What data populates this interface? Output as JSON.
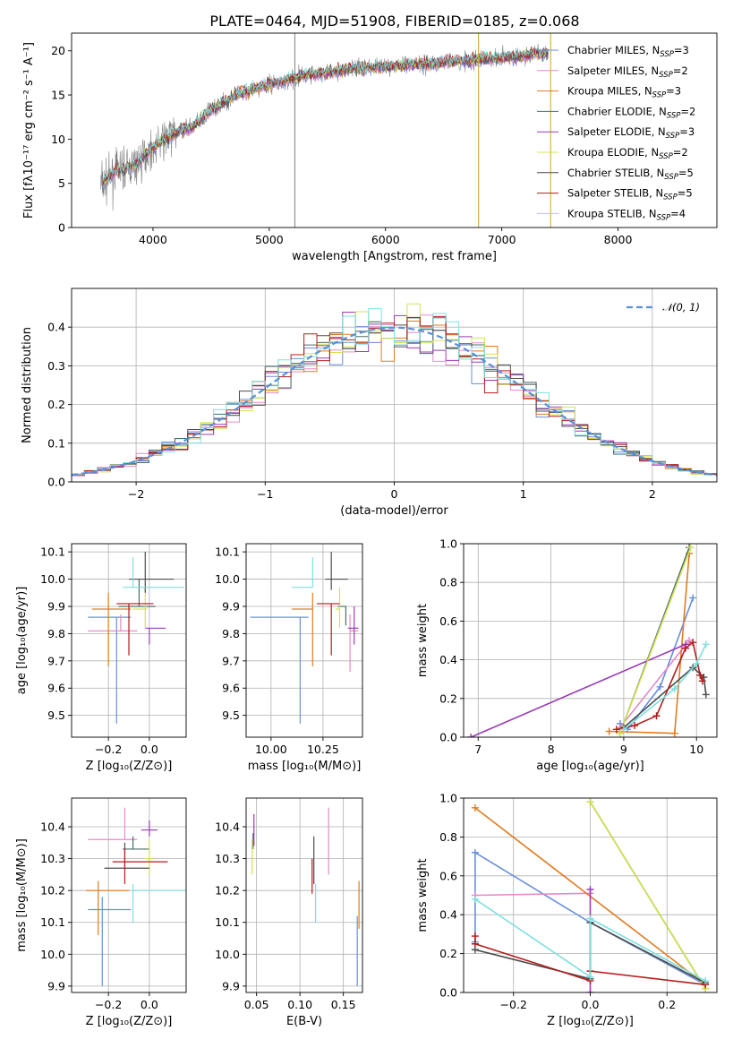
{
  "colors": [
    "#6a8fdd",
    "#e58aca",
    "#e07b20",
    "#4a6d6a",
    "#9a3bb5",
    "#d4e350",
    "#4d4d4d",
    "#b51c1c",
    "#7ee0e0"
  ],
  "chart_data": [
    {
      "id": "spectrum",
      "type": "line",
      "title": "PLATE=0464, MJD=51908, FIBERID=0185, z=0.068",
      "xlabel": "wavelength [Angstrom, rest frame]",
      "ylabel": "Flux [fλ10⁻¹⁷ erg cm⁻² s⁻¹ A⁻¹]",
      "xlim": [
        3300,
        8850
      ],
      "ylim": [
        0,
        22
      ],
      "xticks": [
        4000,
        5000,
        6000,
        7000,
        8000
      ],
      "yticks": [
        0,
        5,
        10,
        15,
        20
      ],
      "grid": false,
      "legend_position": "upper-right",
      "data_color": "#808080",
      "continuum": {
        "x": [
          3550,
          3700,
          3850,
          3950,
          4050,
          4200,
          4350,
          4500,
          4700,
          4900,
          5100,
          5300,
          5500,
          5700,
          6000,
          6300,
          6600,
          7000,
          7400
        ],
        "y": [
          4.8,
          6.5,
          7.0,
          8.5,
          9.5,
          10.8,
          11.5,
          13.3,
          14.9,
          15.9,
          16.5,
          17.2,
          17.5,
          18.0,
          18.2,
          18.5,
          18.8,
          19.2,
          19.8
        ]
      },
      "spikes": [
        {
          "x": 5220,
          "y": 22
        },
        {
          "x": 6800,
          "y": 22
        },
        {
          "x": 7420,
          "y": 22
        }
      ],
      "series": [
        {
          "name": "Chabrier MILES, N_SSP=3",
          "color_index": 0
        },
        {
          "name": "Salpeter MILES, N_SSP=2",
          "color_index": 1
        },
        {
          "name": "Kroupa MILES, N_SSP=3",
          "color_index": 2
        },
        {
          "name": "Chabrier ELODIE, N_SSP=2",
          "color_index": 3
        },
        {
          "name": "Salpeter ELODIE, N_SSP=3",
          "color_index": 4
        },
        {
          "name": "Kroupa ELODIE, N_SSP=2",
          "color_index": 5
        },
        {
          "name": "Chabrier STELIB, N_SSP=5",
          "color_index": 6
        },
        {
          "name": "Salpeter STELIB, N_SSP=5",
          "color_index": 7
        },
        {
          "name": "Kroupa STELIB, N_SSP=4",
          "color_index": 8
        }
      ],
      "legend_entries": [
        {
          "lib": "Chabrier MILES",
          "n": "3"
        },
        {
          "lib": "Salpeter MILES",
          "n": "2"
        },
        {
          "lib": "Kroupa MILES",
          "n": "3"
        },
        {
          "lib": "Chabrier ELODIE",
          "n": "2"
        },
        {
          "lib": "Salpeter ELODIE",
          "n": "3"
        },
        {
          "lib": "Kroupa ELODIE",
          "n": "2"
        },
        {
          "lib": "Chabrier STELIB",
          "n": "5"
        },
        {
          "lib": "Salpeter STELIB",
          "n": "5"
        },
        {
          "lib": "Kroupa STELIB",
          "n": "4"
        }
      ],
      "legend_n_label": "N",
      "legend_n_sub": "SSP"
    },
    {
      "id": "residuals",
      "type": "step",
      "xlabel": "(data-model)/error",
      "ylabel": "Normed distribution",
      "xlim": [
        -2.5,
        2.5
      ],
      "ylim": [
        0,
        0.5
      ],
      "xticks": [
        -2,
        -1,
        0,
        1,
        2
      ],
      "yticks": [
        0.0,
        0.1,
        0.2,
        0.3,
        0.4
      ],
      "grid": true,
      "legend_position": "upper-right",
      "legend_label": "𝒩(0, 1)",
      "reference_curve": {
        "name": "normal",
        "mean": 0,
        "sigma": 1,
        "color": "#5b8fd9"
      },
      "bin_width": 0.1,
      "bin_start": -2.5
    },
    {
      "id": "age_vs_Z",
      "type": "errorbar",
      "xlabel": "Z [log₁₀(Z/Z⊙)]",
      "ylabel": "age  [log₁₀(age/yr)]",
      "xlim": [
        -0.38,
        0.18
      ],
      "ylim": [
        9.42,
        10.13
      ],
      "xticks": [
        -0.2,
        0.0
      ],
      "yticks": [
        9.5,
        9.6,
        9.7,
        9.8,
        9.9,
        10.0,
        10.1
      ],
      "grid": true,
      "points": [
        {
          "x": -0.16,
          "y": 9.86,
          "xerr": [
            0.14,
            0.07
          ],
          "yerr": [
            0.39,
            0.0
          ],
          "color_index": 0
        },
        {
          "x": -0.14,
          "y": 9.81,
          "xerr": [
            0.16,
            0.08
          ],
          "yerr": [
            0.0,
            0.06
          ],
          "color_index": 1
        },
        {
          "x": -0.2,
          "y": 9.89,
          "xerr": [
            0.08,
            0.11
          ],
          "yerr": [
            0.21,
            0.06
          ],
          "color_index": 2
        },
        {
          "x": -0.05,
          "y": 9.9,
          "xerr": [
            0.1,
            0.08
          ],
          "yerr": [
            0.0,
            0.1
          ],
          "color_index": 3
        },
        {
          "x": 0.0,
          "y": 9.82,
          "xerr": [
            0.02,
            0.08
          ],
          "yerr": [
            0.06,
            0.0
          ],
          "color_index": 4
        },
        {
          "x": -0.02,
          "y": 9.89,
          "xerr": [
            0.06,
            0.01
          ],
          "yerr": [
            0.07,
            0.08
          ],
          "color_index": 5
        },
        {
          "x": -0.02,
          "y": 10.0,
          "xerr": [
            0.08,
            0.14
          ],
          "yerr": [
            0.05,
            0.1
          ],
          "color_index": 6
        },
        {
          "x": -0.1,
          "y": 9.91,
          "xerr": [
            0.06,
            0.12
          ],
          "yerr": [
            0.19,
            0.0
          ],
          "color_index": 7
        },
        {
          "x": -0.08,
          "y": 9.97,
          "xerr": [
            0.05,
            0.25
          ],
          "yerr": [
            0.0,
            0.11
          ],
          "color_index": 8
        }
      ]
    },
    {
      "id": "age_vs_mass",
      "type": "errorbar",
      "xlabel": "mass [log₁₀(M/M⊙)]",
      "ylabel": "",
      "xlim": [
        9.88,
        10.44
      ],
      "ylim": [
        9.42,
        10.13
      ],
      "xticks": [
        10.0,
        10.25
      ],
      "ytick_labels": [
        "9.5",
        "9.6",
        "9.7",
        "9.8",
        "9.9",
        "10.0",
        "10.1"
      ],
      "xtick_labels": [
        "10.00",
        "10.25"
      ],
      "yticks": [
        9.5,
        9.6,
        9.7,
        9.8,
        9.9,
        10.0,
        10.1
      ],
      "grid": true,
      "points": [
        {
          "x": 10.14,
          "y": 9.86,
          "xerr": [
            0.24,
            0.04
          ],
          "yerr": [
            0.39,
            0.0
          ],
          "color_index": 0
        },
        {
          "x": 10.38,
          "y": 9.81,
          "xerr": [
            0.0,
            0.04
          ],
          "yerr": [
            0.15,
            0.06
          ],
          "color_index": 1
        },
        {
          "x": 10.2,
          "y": 9.89,
          "xerr": [
            0.1,
            0.0
          ],
          "yerr": [
            0.21,
            0.06
          ],
          "color_index": 2
        },
        {
          "x": 10.36,
          "y": 9.9,
          "xerr": [
            0.04,
            0.0
          ],
          "yerr": [
            0.07,
            0.0
          ],
          "color_index": 3
        },
        {
          "x": 10.4,
          "y": 9.82,
          "xerr": [
            0.03,
            0.02
          ],
          "yerr": [
            0.06,
            0.08
          ],
          "color_index": 4
        },
        {
          "x": 10.33,
          "y": 9.89,
          "xerr": [
            0.02,
            0.0
          ],
          "yerr": [
            0.07,
            0.08
          ],
          "color_index": 5
        },
        {
          "x": 10.29,
          "y": 10.0,
          "xerr": [
            0.03,
            0.08
          ],
          "yerr": [
            0.04,
            0.1
          ],
          "color_index": 6
        },
        {
          "x": 10.29,
          "y": 9.91,
          "xerr": [
            0.07,
            0.04
          ],
          "yerr": [
            0.19,
            0.0
          ],
          "color_index": 7
        },
        {
          "x": 10.2,
          "y": 9.97,
          "xerr": [
            0.1,
            0.0
          ],
          "yerr": [
            0.0,
            0.11
          ],
          "color_index": 8
        }
      ]
    },
    {
      "id": "weight_vs_age",
      "type": "line",
      "xlabel": "age  [log₁₀(age/yr)]",
      "ylabel": "mass weight",
      "xlim": [
        6.8,
        10.28
      ],
      "ylim": [
        0,
        1
      ],
      "xticks": [
        7,
        8,
        9,
        10
      ],
      "yticks": [
        0.0,
        0.2,
        0.4,
        0.6,
        0.8,
        1.0
      ],
      "grid": true,
      "series": [
        {
          "color_index": 0,
          "x": [
            8.95,
            9.05,
            9.5,
            9.95
          ],
          "y": [
            0.07,
            0.04,
            0.26,
            0.72
          ]
        },
        {
          "color_index": 1,
          "x": [
            8.95,
            9.9
          ],
          "y": [
            0.05,
            0.5
          ]
        },
        {
          "color_index": 2,
          "x": [
            8.8,
            9.7,
            9.9
          ],
          "y": [
            0.03,
            0.02,
            0.95
          ]
        },
        {
          "color_index": 3,
          "x": [
            8.95,
            9.9
          ],
          "y": [
            0.02,
            0.98
          ]
        },
        {
          "color_index": 4,
          "x": [
            6.9,
            9.85
          ],
          "y": [
            0.0,
            0.48
          ]
        },
        {
          "color_index": 5,
          "x": [
            8.95,
            9.92
          ],
          "y": [
            0.02,
            0.98
          ]
        },
        {
          "color_index": 6,
          "x": [
            9.0,
            9.95,
            10.1,
            10.13
          ],
          "y": [
            0.05,
            0.36,
            0.31,
            0.22
          ]
        },
        {
          "color_index": 7,
          "x": [
            8.9,
            9.15,
            9.45,
            9.85,
            9.95,
            10.05,
            10.08
          ],
          "y": [
            0.04,
            0.06,
            0.11,
            0.46,
            0.49,
            0.32,
            0.29
          ]
        },
        {
          "color_index": 8,
          "x": [
            9.0,
            9.7,
            10.0,
            10.13
          ],
          "y": [
            0.04,
            0.25,
            0.38,
            0.48
          ]
        }
      ]
    },
    {
      "id": "mass_vs_Z",
      "type": "errorbar",
      "xlabel": "Z [log₁₀(Z/Z⊙)]",
      "ylabel": "mass [log₁₀(M/M⊙)]",
      "xlim": [
        -0.38,
        0.18
      ],
      "ylim": [
        9.88,
        10.49
      ],
      "xticks": [
        -0.2,
        0.0
      ],
      "yticks": [
        9.9,
        10.0,
        10.1,
        10.2,
        10.3,
        10.4
      ],
      "grid": true,
      "points": [
        {
          "x": -0.23,
          "y": 10.14,
          "xerr": [
            0.07,
            0.14
          ],
          "yerr": [
            0.24,
            0.04
          ],
          "color_index": 0
        },
        {
          "x": -0.12,
          "y": 10.36,
          "xerr": [
            0.18,
            0.06
          ],
          "yerr": [
            0.0,
            0.1
          ],
          "color_index": 1
        },
        {
          "x": -0.25,
          "y": 10.2,
          "xerr": [
            0.06,
            0.15
          ],
          "yerr": [
            0.14,
            0.03
          ],
          "color_index": 2
        },
        {
          "x": -0.08,
          "y": 10.33,
          "xerr": [
            0.05,
            0.08
          ],
          "yerr": [
            0.0,
            0.04
          ],
          "color_index": 3
        },
        {
          "x": 0.0,
          "y": 10.39,
          "xerr": [
            0.04,
            0.04
          ],
          "yerr": [
            0.02,
            0.03
          ],
          "color_index": 4
        },
        {
          "x": 0.0,
          "y": 10.3,
          "xerr": [
            0.02,
            0.02
          ],
          "yerr": [
            0.05,
            0.06
          ],
          "color_index": 5
        },
        {
          "x": -0.12,
          "y": 10.27,
          "xerr": [
            0.1,
            0.12
          ],
          "yerr": [
            0.0,
            0.08
          ],
          "color_index": 6
        },
        {
          "x": -0.12,
          "y": 10.29,
          "xerr": [
            0.06,
            0.21
          ],
          "yerr": [
            0.07,
            0.04
          ],
          "color_index": 7
        },
        {
          "x": -0.08,
          "y": 10.2,
          "xerr": [
            0.0,
            0.28
          ],
          "yerr": [
            0.1,
            0.02
          ],
          "color_index": 8
        }
      ]
    },
    {
      "id": "mass_vs_ebv",
      "type": "errorbar",
      "xlabel": "E(B-V)",
      "ylabel": "",
      "xlim": [
        0.038,
        0.172
      ],
      "ylim": [
        9.88,
        10.49
      ],
      "xticks": [
        0.05,
        0.1,
        0.15
      ],
      "xtick_labels": [
        "0.05",
        "0.10",
        "0.15"
      ],
      "yticks": [
        9.9,
        10.0,
        10.1,
        10.2,
        10.3,
        10.4
      ],
      "grid": true,
      "points": [
        {
          "x": 0.166,
          "y": 10.12,
          "xerr": [
            0,
            0
          ],
          "yerr": [
            0.22,
            0.0
          ],
          "color_index": 0
        },
        {
          "x": 0.133,
          "y": 10.38,
          "xerr": [
            0,
            0
          ],
          "yerr": [
            0.13,
            0.08
          ],
          "color_index": 1
        },
        {
          "x": 0.168,
          "y": 10.14,
          "xerr": [
            0,
            0
          ],
          "yerr": [
            0.06,
            0.09
          ],
          "color_index": 2
        },
        {
          "x": 0.046,
          "y": 10.38,
          "xerr": [
            0,
            0
          ],
          "yerr": [
            0.05,
            0.0
          ],
          "color_index": 3
        },
        {
          "x": 0.047,
          "y": 10.39,
          "xerr": [
            0,
            0
          ],
          "yerr": [
            0.05,
            0.05
          ],
          "color_index": 4
        },
        {
          "x": 0.045,
          "y": 10.3,
          "xerr": [
            0,
            0
          ],
          "yerr": [
            0.05,
            0.06
          ],
          "color_index": 5
        },
        {
          "x": 0.116,
          "y": 10.3,
          "xerr": [
            0,
            0
          ],
          "yerr": [
            0.08,
            0.07
          ],
          "color_index": 6
        },
        {
          "x": 0.114,
          "y": 10.24,
          "xerr": [
            0,
            0
          ],
          "yerr": [
            0.05,
            0.06
          ],
          "color_index": 7
        },
        {
          "x": 0.118,
          "y": 10.17,
          "xerr": [
            0,
            0
          ],
          "yerr": [
            0.07,
            0.05
          ],
          "color_index": 8
        }
      ]
    },
    {
      "id": "weight_vs_Z",
      "type": "line",
      "xlabel": "Z [log₁₀(Z/Z⊙)]",
      "ylabel": "mass weight",
      "xlim": [
        -0.33,
        0.33
      ],
      "ylim": [
        0,
        1
      ],
      "xticks": [
        -0.2,
        0.0,
        0.2
      ],
      "yticks": [
        0.0,
        0.2,
        0.4,
        0.6,
        0.8,
        1.0
      ],
      "grid": true,
      "series": [
        {
          "color_index": 0,
          "x": [
            -0.3,
            -0.3,
            0.0,
            0.3
          ],
          "y": [
            0.26,
            0.72,
            0.36,
            0.04
          ]
        },
        {
          "color_index": 1,
          "x": [
            -0.3,
            0.0
          ],
          "y": [
            0.5,
            0.51
          ]
        },
        {
          "color_index": 2,
          "x": [
            -0.3,
            0.3
          ],
          "y": [
            0.95,
            0.04
          ]
        },
        {
          "color_index": 3,
          "x": [
            0.0,
            0.3
          ],
          "y": [
            0.98,
            0.02
          ]
        },
        {
          "color_index": 4,
          "x": [
            0.0,
            0.0
          ],
          "y": [
            0.0,
            0.53
          ]
        },
        {
          "color_index": 5,
          "x": [
            0.0,
            0.3
          ],
          "y": [
            0.98,
            0.02
          ]
        },
        {
          "color_index": 6,
          "x": [
            -0.3,
            0.0,
            0.0,
            0.3
          ],
          "y": [
            0.22,
            0.07,
            0.36,
            0.05
          ]
        },
        {
          "color_index": 7,
          "x": [
            -0.3,
            -0.3,
            0.0,
            0.0,
            0.3
          ],
          "y": [
            0.29,
            0.25,
            0.06,
            0.11,
            0.04
          ]
        },
        {
          "color_index": 8,
          "x": [
            -0.3,
            0.0,
            0.0,
            0.3
          ],
          "y": [
            0.48,
            0.08,
            0.38,
            0.06
          ]
        }
      ]
    }
  ]
}
